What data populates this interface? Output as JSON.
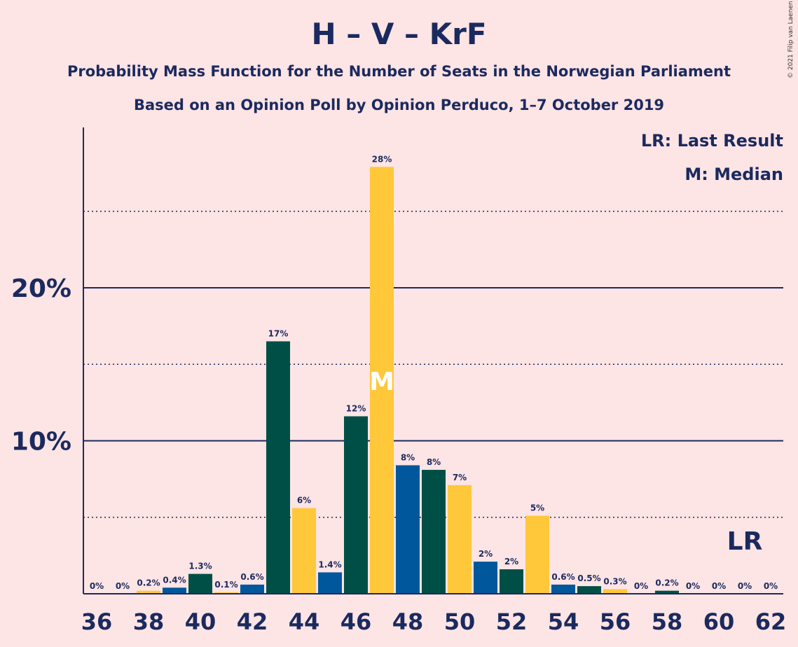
{
  "header": {
    "title": "H – V – KrF",
    "subtitle1": "Probability Mass Function for the Number of Seats in the Norwegian Parliament",
    "subtitle2": "Based on an Opinion Poll by Opinion Perduco, 1–7 October 2019",
    "copyright": "© 2021 Filip van Laenen"
  },
  "legend": {
    "lr": "LR: Last Result",
    "median": "M: Median"
  },
  "colors": {
    "background": "#FDE4E5",
    "blue": "#00579B",
    "green": "#004F46",
    "yellow": "#FFC83A",
    "text": "#1B2A5E"
  },
  "chart_data": {
    "type": "bar",
    "x": [
      36,
      37,
      38,
      39,
      40,
      41,
      42,
      43,
      44,
      45,
      46,
      47,
      48,
      49,
      50,
      51,
      52,
      53,
      54,
      55,
      56,
      57,
      58,
      59,
      60,
      61,
      62
    ],
    "values": [
      0,
      0,
      0.2,
      0.4,
      1.3,
      0.1,
      0.6,
      16.5,
      5.6,
      1.4,
      11.6,
      27.9,
      8.4,
      8.1,
      7.1,
      2.1,
      1.6,
      5.1,
      0.6,
      0.5,
      0.3,
      0,
      0.2,
      0,
      0,
      0,
      0
    ],
    "labels": [
      "0%",
      "0%",
      "0.2%",
      "0.4%",
      "1.3%",
      "0.1%",
      "0.6%",
      "17%",
      "6%",
      "1.4%",
      "12%",
      "28%",
      "8%",
      "8%",
      "7%",
      "2%",
      "2%",
      "5%",
      "0.6%",
      "0.5%",
      "0.3%",
      "0%",
      "0.2%",
      "0%",
      "0%",
      "0%",
      "0%"
    ],
    "colors": [
      "blue",
      "green",
      "yellow",
      "blue",
      "green",
      "yellow",
      "blue",
      "green",
      "yellow",
      "blue",
      "green",
      "yellow",
      "blue",
      "green",
      "yellow",
      "blue",
      "green",
      "yellow",
      "blue",
      "green",
      "yellow",
      "blue",
      "green",
      "yellow",
      "blue",
      "green",
      "yellow"
    ],
    "xticks": [
      "36",
      "38",
      "40",
      "42",
      "44",
      "46",
      "48",
      "50",
      "52",
      "54",
      "56",
      "58",
      "60",
      "62"
    ],
    "yticks": [
      "10%",
      "20%"
    ],
    "ylim": [
      0,
      30
    ],
    "solid_gridlines": [
      10,
      20
    ],
    "dotted_gridlines": [
      5,
      15,
      25
    ],
    "median_seat": 47,
    "median_marker": "M",
    "last_result_seat": 61,
    "last_result_marker": "LR",
    "legend_position": "top-right"
  }
}
